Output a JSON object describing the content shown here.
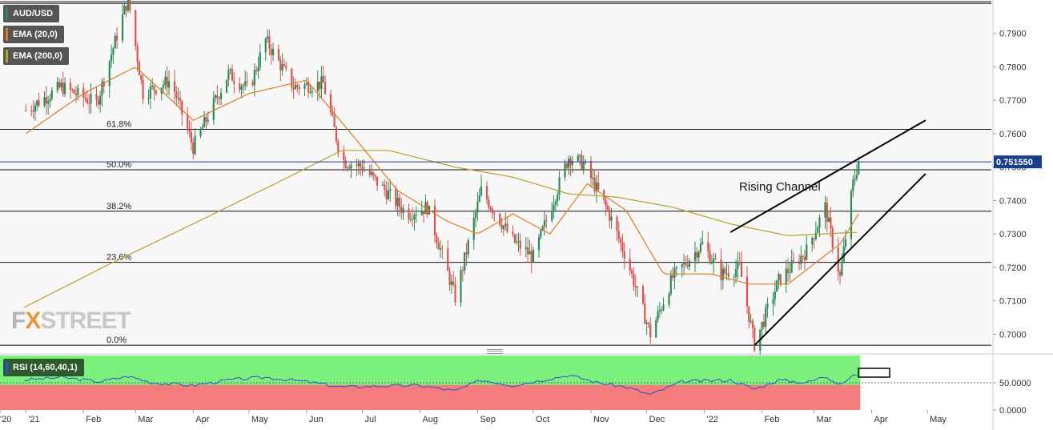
{
  "legend": {
    "pair": "AUD/USD",
    "ema20": "EMA (20,0)",
    "ema200": "EMA (200,0)",
    "rsi": "RSI (14,60,40,1)"
  },
  "watermark": "FXSTREET",
  "annotation": "Rising Channel",
  "current_price_label": "0.751550",
  "colors": {
    "bull": "#2e8b57",
    "bear": "#d9534f",
    "ema20": "#e07b24",
    "ema200": "#b5a22a",
    "rsi_line": "#2d4fd1",
    "rsi_upper_zone": "#7cf07c",
    "rsi_lower_zone": "#f47c7c",
    "price_line": "#1a3e8c"
  },
  "chart_data": {
    "type": "candlestick",
    "instrument": "AUD/USD",
    "timeframe": "daily",
    "x_tick_labels": [
      "'20",
      "'21",
      "Feb",
      "Mar",
      "Apr",
      "May",
      "Jun",
      "Jul",
      "Aug",
      "Sep",
      "Oct",
      "Nov",
      "Dec",
      "'22",
      "Feb",
      "Mar",
      "Apr",
      "May"
    ],
    "y_range": [
      0.6965,
      0.7995
    ],
    "y_tick_values": [
      0.7,
      0.71,
      0.72,
      0.73,
      0.74,
      0.75,
      0.76,
      0.77,
      0.78,
      0.79
    ],
    "y_tick_labels": [
      "0.7000",
      "0.7100",
      "0.7200",
      "0.7300",
      "0.7400",
      "0.7500",
      "0.7600",
      "0.7700",
      "0.7800",
      "0.7900"
    ],
    "fibonacci": [
      {
        "label": "0.0%",
        "value": 0.6967
      },
      {
        "label": "23.6%",
        "value": 0.7215
      },
      {
        "label": "38.2%",
        "value": 0.7368
      },
      {
        "label": "50.0%",
        "value": 0.7492
      },
      {
        "label": "61.8%",
        "value": 0.7613
      },
      {
        "label": "",
        "value": 0.799
      }
    ],
    "price_anchors": [
      [
        "2021-01-01",
        0.767
      ],
      [
        "2021-01-20",
        0.774
      ],
      [
        "2021-02-08",
        0.769
      ],
      [
        "2021-02-25",
        0.8005
      ],
      [
        "2021-03-05",
        0.772
      ],
      [
        "2021-03-20",
        0.776
      ],
      [
        "2021-04-01",
        0.756
      ],
      [
        "2021-04-20",
        0.778
      ],
      [
        "2021-05-01",
        0.773
      ],
      [
        "2021-05-10",
        0.788
      ],
      [
        "2021-05-25",
        0.774
      ],
      [
        "2021-06-10",
        0.775
      ],
      [
        "2021-06-20",
        0.752
      ],
      [
        "2021-07-01",
        0.75
      ],
      [
        "2021-07-15",
        0.742
      ],
      [
        "2021-07-25",
        0.736
      ],
      [
        "2021-08-05",
        0.738
      ],
      [
        "2021-08-20",
        0.711
      ],
      [
        "2021-09-03",
        0.743
      ],
      [
        "2021-09-20",
        0.728
      ],
      [
        "2021-10-01",
        0.723
      ],
      [
        "2021-10-20",
        0.753
      ],
      [
        "2021-10-28",
        0.751
      ],
      [
        "2021-11-10",
        0.737
      ],
      [
        "2021-11-20",
        0.723
      ],
      [
        "2021-12-03",
        0.7
      ],
      [
        "2021-12-15",
        0.717
      ],
      [
        "2021-12-31",
        0.727
      ],
      [
        "2022-01-10",
        0.718
      ],
      [
        "2022-01-20",
        0.72
      ],
      [
        "2022-01-28",
        0.697
      ],
      [
        "2022-02-10",
        0.716
      ],
      [
        "2022-02-25",
        0.725
      ],
      [
        "2022-03-07",
        0.738
      ],
      [
        "2022-03-15",
        0.717
      ],
      [
        "2022-03-22",
        0.745
      ],
      [
        "2022-03-25",
        0.7515
      ]
    ],
    "ema20_anchors": [
      [
        "2021-01-01",
        0.76
      ],
      [
        "2021-02-01",
        0.772
      ],
      [
        "2021-03-01",
        0.78
      ],
      [
        "2021-04-01",
        0.764
      ],
      [
        "2021-05-01",
        0.772
      ],
      [
        "2021-06-01",
        0.776
      ],
      [
        "2021-06-25",
        0.76
      ],
      [
        "2021-07-20",
        0.743
      ],
      [
        "2021-08-15",
        0.734
      ],
      [
        "2021-09-01",
        0.73
      ],
      [
        "2021-09-20",
        0.736
      ],
      [
        "2021-10-10",
        0.73
      ],
      [
        "2021-10-30",
        0.745
      ],
      [
        "2021-11-20",
        0.737
      ],
      [
        "2021-12-10",
        0.718
      ],
      [
        "2022-01-05",
        0.718
      ],
      [
        "2022-01-25",
        0.715
      ],
      [
        "2022-02-15",
        0.715
      ],
      [
        "2022-03-01",
        0.721
      ],
      [
        "2022-03-15",
        0.727
      ],
      [
        "2022-03-25",
        0.736
      ]
    ],
    "ema200_anchors": [
      [
        "2020-12-31",
        0.708
      ],
      [
        "2021-02-15",
        0.721
      ],
      [
        "2021-04-01",
        0.733
      ],
      [
        "2021-05-15",
        0.745
      ],
      [
        "2021-06-20",
        0.755
      ],
      [
        "2021-07-15",
        0.755
      ],
      [
        "2021-08-20",
        0.75
      ],
      [
        "2021-09-20",
        0.747
      ],
      [
        "2021-10-20",
        0.742
      ],
      [
        "2021-11-15",
        0.741
      ],
      [
        "2021-12-15",
        0.738
      ],
      [
        "2022-01-15",
        0.733
      ],
      [
        "2022-02-15",
        0.7295
      ],
      [
        "2022-03-25",
        0.7305
      ]
    ],
    "trendlines": [
      {
        "from": [
          "2022-01-15",
          0.7305
        ],
        "to": [
          "2022-04-30",
          0.764
        ]
      },
      {
        "from": [
          "2022-01-28",
          0.6967
        ],
        "to": [
          "2022-04-30",
          0.748
        ]
      }
    ],
    "current_price": 0.75155,
    "rsi": {
      "y_range": [
        0,
        100
      ],
      "tick_values": [
        0,
        50
      ],
      "tick_labels": [
        "0.0000",
        "50.0000"
      ],
      "upper_level": 60,
      "lower_level": 40,
      "anchors": [
        [
          "2020-12-31",
          55
        ],
        [
          "2021-01-20",
          60
        ],
        [
          "2021-02-10",
          52
        ],
        [
          "2021-02-25",
          62
        ],
        [
          "2021-03-10",
          50
        ],
        [
          "2021-04-01",
          45
        ],
        [
          "2021-04-20",
          55
        ],
        [
          "2021-05-10",
          60
        ],
        [
          "2021-06-01",
          52
        ],
        [
          "2021-06-20",
          42
        ],
        [
          "2021-07-10",
          44
        ],
        [
          "2021-08-01",
          45
        ],
        [
          "2021-08-20",
          35
        ],
        [
          "2021-09-03",
          55
        ],
        [
          "2021-09-20",
          45
        ],
        [
          "2021-10-20",
          64
        ],
        [
          "2021-11-05",
          50
        ],
        [
          "2021-11-20",
          42
        ],
        [
          "2021-12-03",
          28
        ],
        [
          "2021-12-20",
          52
        ],
        [
          "2022-01-15",
          55
        ],
        [
          "2022-01-28",
          38
        ],
        [
          "2022-02-10",
          55
        ],
        [
          "2022-02-25",
          50
        ],
        [
          "2022-03-07",
          62
        ],
        [
          "2022-03-15",
          48
        ],
        [
          "2022-03-25",
          68
        ]
      ]
    }
  }
}
